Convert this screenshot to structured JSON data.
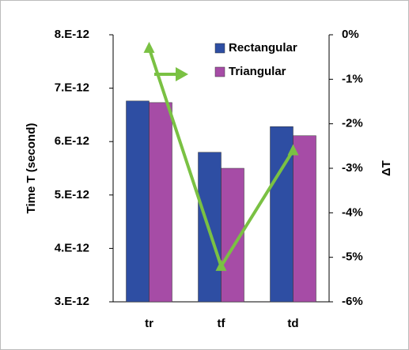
{
  "chart_data": {
    "type": "bar",
    "categories": [
      "tr",
      "tf",
      "td"
    ],
    "series": [
      {
        "name": "Rectangular",
        "color": "#2e4ea3",
        "values": [
          6.76e-12,
          5.8e-12,
          6.28e-12
        ]
      },
      {
        "name": "Triangular",
        "color": "#a64ca6",
        "values": [
          6.73e-12,
          5.5e-12,
          6.11e-12
        ]
      },
      {
        "type": "line",
        "axis": "y2",
        "color": "#7ac143",
        "values": [
          -0.3,
          -5.2,
          -2.6
        ]
      }
    ],
    "ylabel": "Time T (second)",
    "y2label": "ΔT",
    "ylim": [
      3e-12,
      8e-12
    ],
    "yticks": [
      {
        "value": 3e-12,
        "label": "3.E-12"
      },
      {
        "value": 4e-12,
        "label": "4.E-12"
      },
      {
        "value": 5e-12,
        "label": "5.E-12"
      },
      {
        "value": 6e-12,
        "label": "6.E-12"
      },
      {
        "value": 7e-12,
        "label": "7.E-12"
      },
      {
        "value": 8e-12,
        "label": "8.E-12"
      }
    ],
    "y2lim": [
      -6,
      0
    ],
    "y2ticks": [
      {
        "value": -6,
        "label": "-6%"
      },
      {
        "value": -5,
        "label": "-5%"
      },
      {
        "value": -4,
        "label": "-4%"
      },
      {
        "value": -3,
        "label": "-3%"
      },
      {
        "value": -2,
        "label": "-2%"
      },
      {
        "value": -1,
        "label": "-1%"
      },
      {
        "value": 0,
        "label": "0%"
      }
    ],
    "legend": "top-right",
    "grid": false
  }
}
